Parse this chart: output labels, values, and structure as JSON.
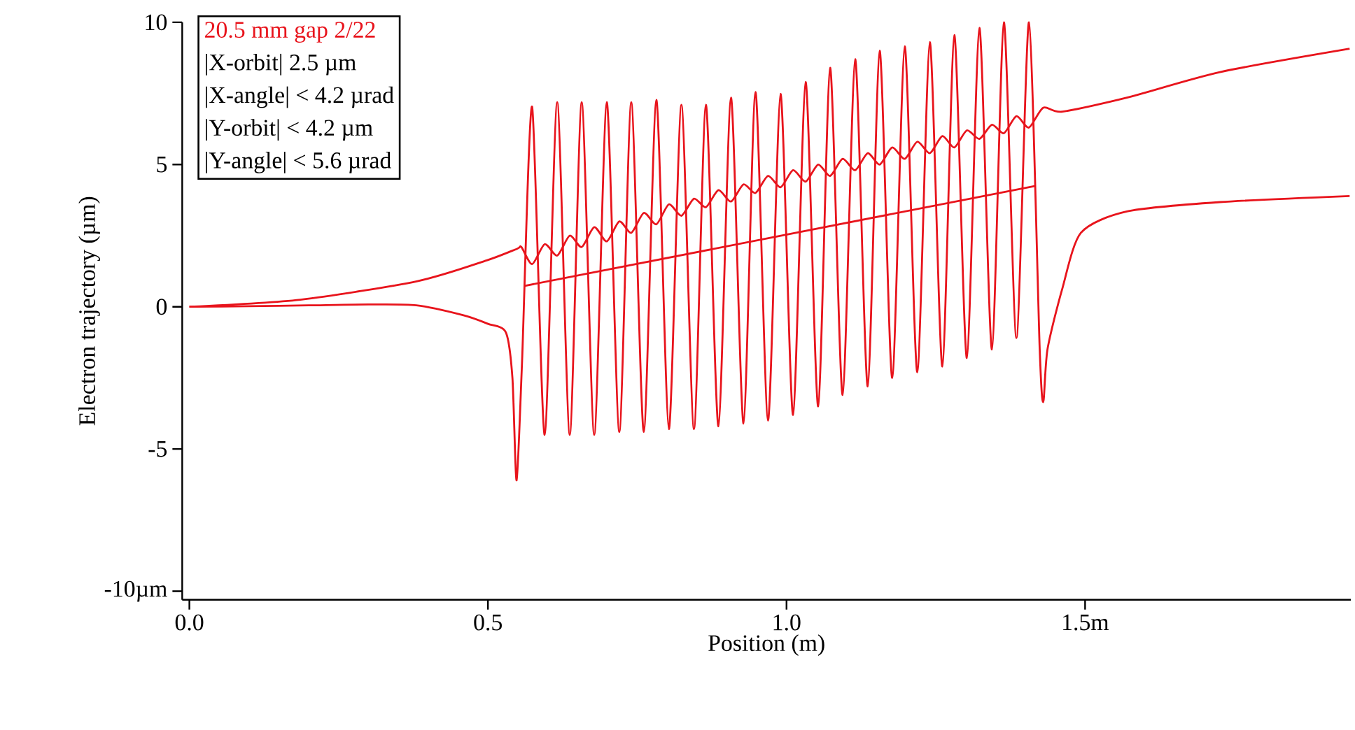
{
  "chart_data": {
    "type": "line",
    "title": "20.5 mm gap   2/22",
    "annotations": [
      "|X-orbit|   2.5 µm",
      "|X-angle| < 4.2 µrad",
      "|Y-orbit| <  4.2 µm",
      "|Y-angle| < 5.6 µrad"
    ],
    "xlabel": "Position (m)",
    "ylabel": "Electron trajectory (µm)",
    "xlim": [
      -0.012,
      1.945
    ],
    "ylim": [
      -10.3,
      10
    ],
    "xticks": [
      {
        "value": 0,
        "label": "0.0"
      },
      {
        "value": 0.5,
        "label": "0.5"
      },
      {
        "value": 1.0,
        "label": "1.0"
      },
      {
        "value": 1.5,
        "label": "1.5m"
      }
    ],
    "yticks": [
      {
        "value": -10,
        "label": "-10µm"
      },
      -5,
      0,
      5,
      10
    ],
    "series": [
      {
        "color": "#e8141c",
        "x": [
          0,
          0.1,
          0.2,
          0.3,
          0.38,
          0.459,
          0.5,
          0.53,
          0.541,
          0.548,
          0.557,
          0.574,
          0.595,
          0.616,
          0.637,
          0.657,
          0.678,
          0.699,
          0.72,
          0.74,
          0.761,
          0.782,
          0.803,
          0.824,
          0.845,
          0.865,
          0.886,
          0.907,
          0.928,
          0.948,
          0.969,
          0.99,
          1.011,
          1.032,
          1.053,
          1.073,
          1.094,
          1.115,
          1.136,
          1.156,
          1.177,
          1.198,
          1.219,
          1.24,
          1.261,
          1.281,
          1.302,
          1.323,
          1.344,
          1.364,
          1.385,
          1.406,
          1.424,
          1.43,
          1.437,
          1.462,
          1.493,
          1.57,
          1.726,
          1.943
        ],
        "values": [
          0,
          0.02,
          0.05,
          0.08,
          0.05,
          -0.3,
          -0.6,
          -0.9,
          -2.5,
          -6.1,
          -2,
          7.03,
          -4.5,
          7.19,
          -4.5,
          7.19,
          -4.5,
          7.19,
          -4.4,
          7.19,
          -4.4,
          7.27,
          -4.3,
          7.1,
          -4.3,
          7.1,
          -4.2,
          7.35,
          -4.1,
          7.55,
          -4.0,
          7.48,
          -3.8,
          7.9,
          -3.5,
          8.4,
          -3.1,
          8.7,
          -2.8,
          9.0,
          -2.5,
          9.15,
          -2.3,
          9.3,
          -2.1,
          9.55,
          -1.8,
          9.8,
          -1.5,
          10.0,
          -1.1,
          10.0,
          -1.5,
          -3.35,
          -1.5,
          0.65,
          2.6,
          3.35,
          3.68,
          3.89
        ]
      },
      {
        "color": "#e8141c",
        "x": [
          0,
          0.186,
          0.382,
          0.498,
          0.549,
          0.556,
          0.574,
          0.595,
          0.616,
          0.637,
          0.657,
          0.678,
          0.699,
          0.72,
          0.74,
          0.761,
          0.782,
          0.803,
          0.824,
          0.845,
          0.865,
          0.886,
          0.907,
          0.928,
          0.948,
          0.969,
          0.99,
          1.011,
          1.032,
          1.053,
          1.073,
          1.094,
          1.115,
          1.136,
          1.156,
          1.177,
          1.198,
          1.219,
          1.24,
          1.261,
          1.281,
          1.302,
          1.323,
          1.344,
          1.364,
          1.385,
          1.406,
          1.43,
          1.462,
          1.57,
          1.726,
          1.943
        ],
        "values": [
          0,
          0.25,
          0.9,
          1.63,
          2.04,
          2.1,
          1.5,
          2.2,
          1.8,
          2.5,
          2.1,
          2.8,
          2.3,
          3.0,
          2.6,
          3.3,
          2.9,
          3.6,
          3.2,
          3.8,
          3.5,
          4.1,
          3.7,
          4.3,
          4.0,
          4.6,
          4.2,
          4.8,
          4.4,
          5.0,
          4.6,
          5.2,
          4.8,
          5.4,
          5.0,
          5.6,
          5.2,
          5.8,
          5.4,
          6.0,
          5.6,
          6.2,
          5.9,
          6.4,
          6.1,
          6.7,
          6.3,
          7.0,
          6.86,
          7.35,
          8.25,
          9.07
        ]
      },
      {
        "color": "#e8141c",
        "x": [
          0.56,
          1.417
        ],
        "values": [
          0.73,
          4.25
        ]
      }
    ]
  }
}
